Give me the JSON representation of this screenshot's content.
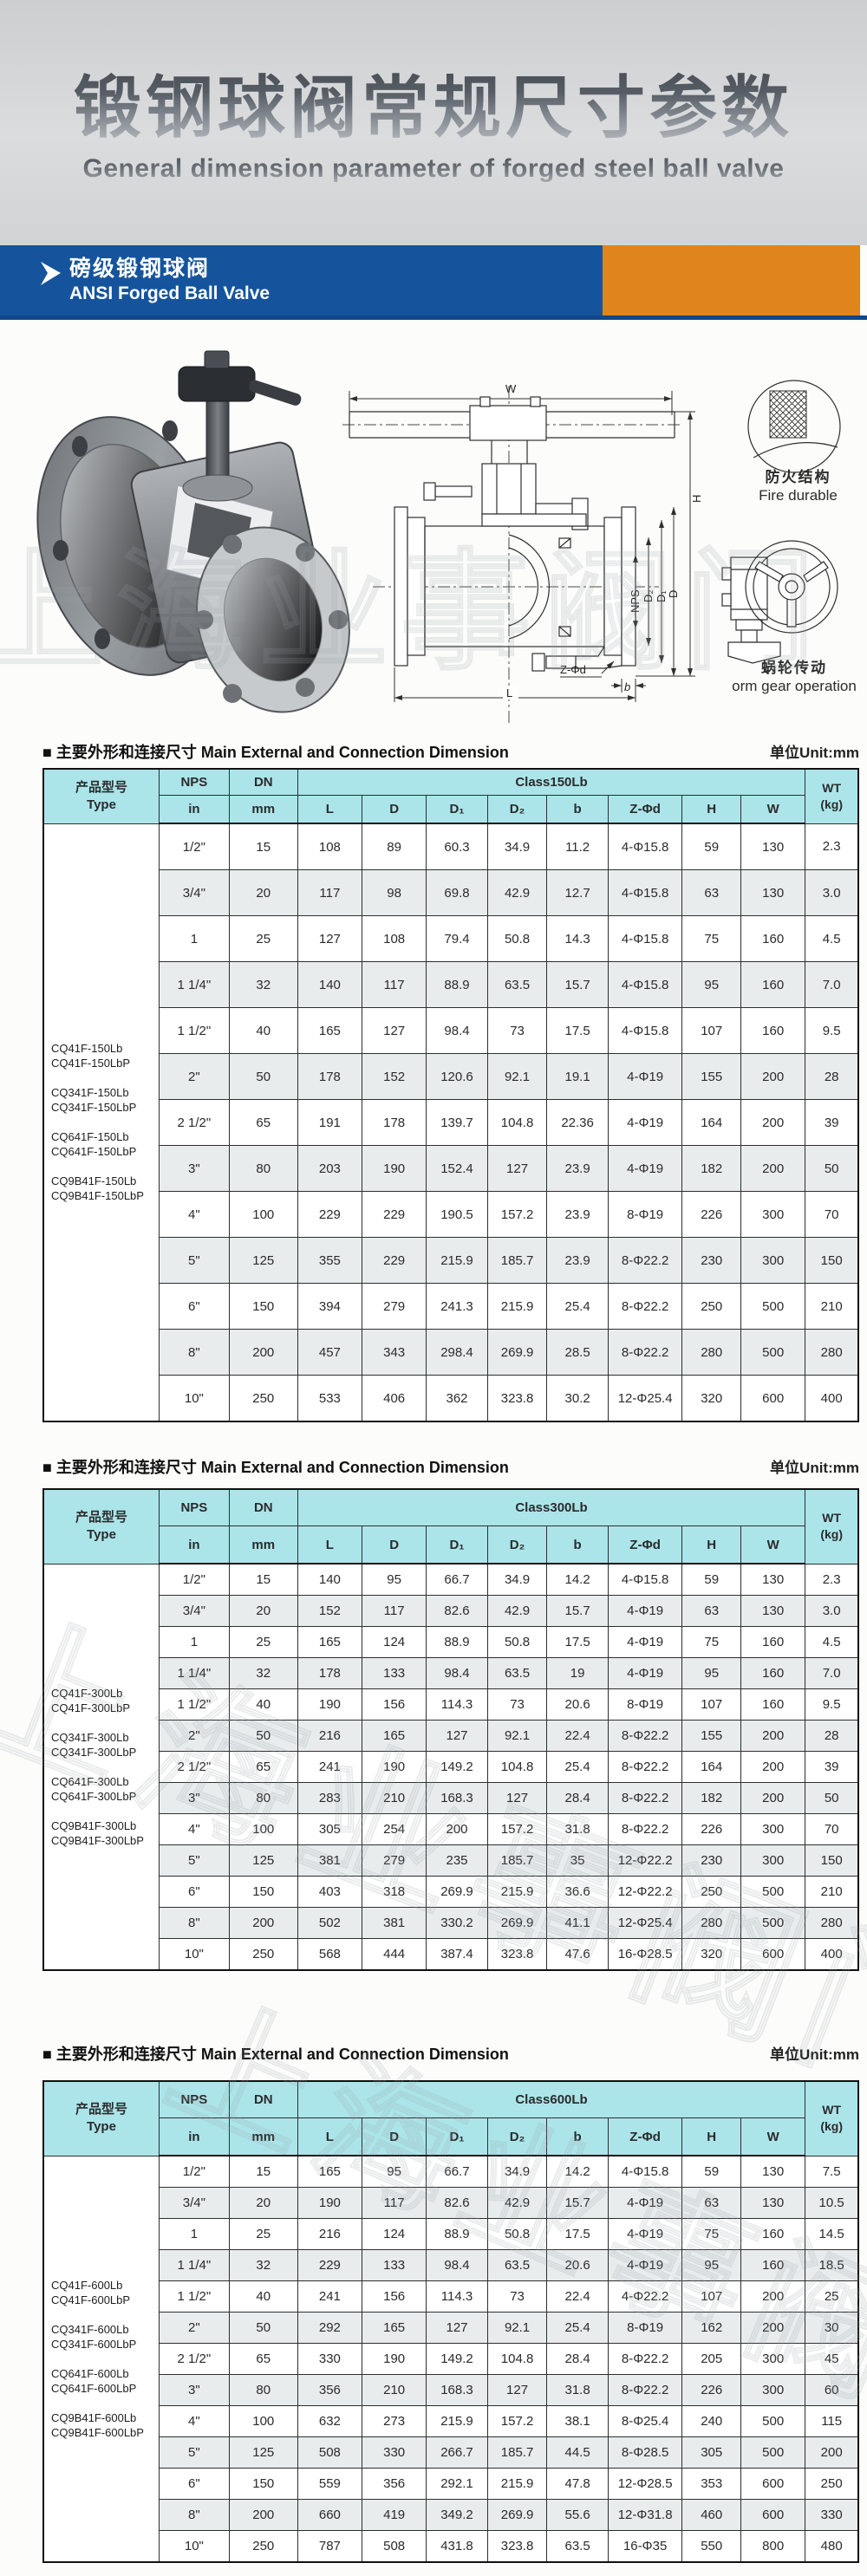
{
  "header": {
    "title_zh": "锻钢球阀常规尺寸参数",
    "subtitle_en": "General dimension parameter of forged steel ball valve",
    "banner_zh": "磅级锻钢球阀",
    "banner_en": "ANSI Forged Ball Valve",
    "colors": {
      "banner_blue": "#15549c",
      "banner_orange": "#df851b",
      "table_header_cyan": "#abe5ea"
    }
  },
  "page": {
    "section_title": "■ 主要外形和连接尺寸 Main External and Connection Dimension",
    "unit_label": "单位Unit:mm"
  },
  "watermark": "上海业事阀门",
  "drawing": {
    "dim_labels": {
      "w": "W",
      "h": "H",
      "nps": "NPS",
      "d2": "D₂",
      "d1": "D₁",
      "d": "D",
      "zphid": "Z-Φd",
      "b": "b",
      "l": "L"
    },
    "fire": {
      "zh": "防火结构",
      "en": "Fire durable"
    },
    "gear": {
      "zh": "蜗轮传动",
      "en": "orm gear operation"
    }
  },
  "table_headers": {
    "type": "产品型号",
    "type_en": "Type",
    "nps": "NPS",
    "nps_unit": "in",
    "dn": "DN",
    "dn_unit": "mm",
    "cols": [
      "L",
      "D",
      "D₁",
      "D₂",
      "b",
      "Z-Φd",
      "H",
      "W"
    ],
    "wt": "WT",
    "wt_unit": "(kg)"
  },
  "tables": [
    {
      "class_label": "Class150Lb",
      "types": [
        "CQ41F-150Lb",
        "CQ41F-150LbP",
        "",
        "CQ341F-150Lb",
        "CQ341F-150LbP",
        "",
        "CQ641F-150Lb",
        "CQ641F-150LbP",
        "",
        "CQ9B41F-150Lb",
        "CQ9B41F-150LbP"
      ],
      "rows": [
        [
          "1/2\"",
          "15",
          "108",
          "89",
          "60.3",
          "34.9",
          "11.2",
          "4-Φ15.8",
          "59",
          "130",
          "2.3"
        ],
        [
          "3/4\"",
          "20",
          "117",
          "98",
          "69.8",
          "42.9",
          "12.7",
          "4-Φ15.8",
          "63",
          "130",
          "3.0"
        ],
        [
          "1",
          "25",
          "127",
          "108",
          "79.4",
          "50.8",
          "14.3",
          "4-Φ15.8",
          "75",
          "160",
          "4.5"
        ],
        [
          "1 1/4\"",
          "32",
          "140",
          "117",
          "88.9",
          "63.5",
          "15.7",
          "4-Φ15.8",
          "95",
          "160",
          "7.0"
        ],
        [
          "1 1/2\"",
          "40",
          "165",
          "127",
          "98.4",
          "73",
          "17.5",
          "4-Φ15.8",
          "107",
          "160",
          "9.5"
        ],
        [
          "2\"",
          "50",
          "178",
          "152",
          "120.6",
          "92.1",
          "19.1",
          "4-Φ19",
          "155",
          "200",
          "28"
        ],
        [
          "2 1/2\"",
          "65",
          "191",
          "178",
          "139.7",
          "104.8",
          "22.36",
          "4-Φ19",
          "164",
          "200",
          "39"
        ],
        [
          "3\"",
          "80",
          "203",
          "190",
          "152.4",
          "127",
          "23.9",
          "4-Φ19",
          "182",
          "200",
          "50"
        ],
        [
          "4\"",
          "100",
          "229",
          "229",
          "190.5",
          "157.2",
          "23.9",
          "8-Φ19",
          "226",
          "300",
          "70"
        ],
        [
          "5\"",
          "125",
          "355",
          "229",
          "215.9",
          "185.7",
          "23.9",
          "8-Φ22.2",
          "230",
          "300",
          "150"
        ],
        [
          "6\"",
          "150",
          "394",
          "279",
          "241.3",
          "215.9",
          "25.4",
          "8-Φ22.2",
          "250",
          "500",
          "210"
        ],
        [
          "8\"",
          "200",
          "457",
          "343",
          "298.4",
          "269.9",
          "28.5",
          "8-Φ22.2",
          "280",
          "500",
          "280"
        ],
        [
          "10\"",
          "250",
          "533",
          "406",
          "362",
          "323.8",
          "30.2",
          "12-Φ25.4",
          "320",
          "600",
          "400"
        ]
      ]
    },
    {
      "class_label": "Class300Lb",
      "types": [
        "CQ41F-300Lb",
        "CQ41F-300LbP",
        "",
        "CQ341F-300Lb",
        "CQ341F-300LbP",
        "",
        "CQ641F-300Lb",
        "CQ641F-300LbP",
        "",
        "CQ9B41F-300Lb",
        "CQ9B41F-300LbP"
      ],
      "rows": [
        [
          "1/2\"",
          "15",
          "140",
          "95",
          "66.7",
          "34.9",
          "14.2",
          "4-Φ15.8",
          "59",
          "130",
          "2.3"
        ],
        [
          "3/4\"",
          "20",
          "152",
          "117",
          "82.6",
          "42.9",
          "15.7",
          "4-Φ19",
          "63",
          "130",
          "3.0"
        ],
        [
          "1",
          "25",
          "165",
          "124",
          "88.9",
          "50.8",
          "17.5",
          "4-Φ19",
          "75",
          "160",
          "4.5"
        ],
        [
          "1 1/4\"",
          "32",
          "178",
          "133",
          "98.4",
          "63.5",
          "19",
          "4-Φ19",
          "95",
          "160",
          "7.0"
        ],
        [
          "1 1/2\"",
          "40",
          "190",
          "156",
          "114.3",
          "73",
          "20.6",
          "8-Φ19",
          "107",
          "160",
          "9.5"
        ],
        [
          "2\"",
          "50",
          "216",
          "165",
          "127",
          "92.1",
          "22.4",
          "8-Φ22.2",
          "155",
          "200",
          "28"
        ],
        [
          "2 1/2\"",
          "65",
          "241",
          "190",
          "149.2",
          "104.8",
          "25.4",
          "8-Φ22.2",
          "164",
          "200",
          "39"
        ],
        [
          "3\"",
          "80",
          "283",
          "210",
          "168.3",
          "127",
          "28.4",
          "8-Φ22.2",
          "182",
          "200",
          "50"
        ],
        [
          "4\"",
          "100",
          "305",
          "254",
          "200",
          "157.2",
          "31.8",
          "8-Φ22.2",
          "226",
          "300",
          "70"
        ],
        [
          "5\"",
          "125",
          "381",
          "279",
          "235",
          "185.7",
          "35",
          "12-Φ22.2",
          "230",
          "300",
          "150"
        ],
        [
          "6\"",
          "150",
          "403",
          "318",
          "269.9",
          "215.9",
          "36.6",
          "12-Φ22.2",
          "250",
          "500",
          "210"
        ],
        [
          "8\"",
          "200",
          "502",
          "381",
          "330.2",
          "269.9",
          "41.1",
          "12-Φ25.4",
          "280",
          "500",
          "280"
        ],
        [
          "10\"",
          "250",
          "568",
          "444",
          "387.4",
          "323.8",
          "47.6",
          "16-Φ28.5",
          "320",
          "600",
          "400"
        ]
      ]
    },
    {
      "class_label": "Class600Lb",
      "types": [
        "CQ41F-600Lb",
        "CQ41F-600LbP",
        "",
        "CQ341F-600Lb",
        "CQ341F-600LbP",
        "",
        "CQ641F-600Lb",
        "CQ641F-600LbP",
        "",
        "CQ9B41F-600Lb",
        "CQ9B41F-600LbP"
      ],
      "rows": [
        [
          "1/2\"",
          "15",
          "165",
          "95",
          "66.7",
          "34.9",
          "14.2",
          "4-Φ15.8",
          "59",
          "130",
          "7.5"
        ],
        [
          "3/4\"",
          "20",
          "190",
          "117",
          "82.6",
          "42.9",
          "15.7",
          "4-Φ19",
          "63",
          "130",
          "10.5"
        ],
        [
          "1",
          "25",
          "216",
          "124",
          "88.9",
          "50.8",
          "17.5",
          "4-Φ19",
          "75",
          "160",
          "14.5"
        ],
        [
          "1 1/4\"",
          "32",
          "229",
          "133",
          "98.4",
          "63.5",
          "20.6",
          "4-Φ19",
          "95",
          "160",
          "18.5"
        ],
        [
          "1 1/2\"",
          "40",
          "241",
          "156",
          "114.3",
          "73",
          "22.4",
          "4-Φ22.2",
          "107",
          "200",
          "25"
        ],
        [
          "2\"",
          "50",
          "292",
          "165",
          "127",
          "92.1",
          "25.4",
          "8-Φ19",
          "162",
          "200",
          "30"
        ],
        [
          "2 1/2\"",
          "65",
          "330",
          "190",
          "149.2",
          "104.8",
          "28.4",
          "8-Φ22.2",
          "205",
          "300",
          "45"
        ],
        [
          "3\"",
          "80",
          "356",
          "210",
          "168.3",
          "127",
          "31.8",
          "8-Φ22.2",
          "226",
          "300",
          "60"
        ],
        [
          "4\"",
          "100",
          "632",
          "273",
          "215.9",
          "157.2",
          "38.1",
          "8-Φ25.4",
          "240",
          "500",
          "115"
        ],
        [
          "5\"",
          "125",
          "508",
          "330",
          "266.7",
          "185.7",
          "44.5",
          "8-Φ28.5",
          "305",
          "500",
          "200"
        ],
        [
          "6\"",
          "150",
          "559",
          "356",
          "292.1",
          "215.9",
          "47.8",
          "12-Φ28.5",
          "353",
          "600",
          "250"
        ],
        [
          "8\"",
          "200",
          "660",
          "419",
          "349.2",
          "269.9",
          "55.6",
          "12-Φ31.8",
          "460",
          "600",
          "330"
        ],
        [
          "10\"",
          "250",
          "787",
          "508",
          "431.8",
          "323.8",
          "63.5",
          "16-Φ35",
          "550",
          "800",
          "480"
        ]
      ]
    }
  ]
}
